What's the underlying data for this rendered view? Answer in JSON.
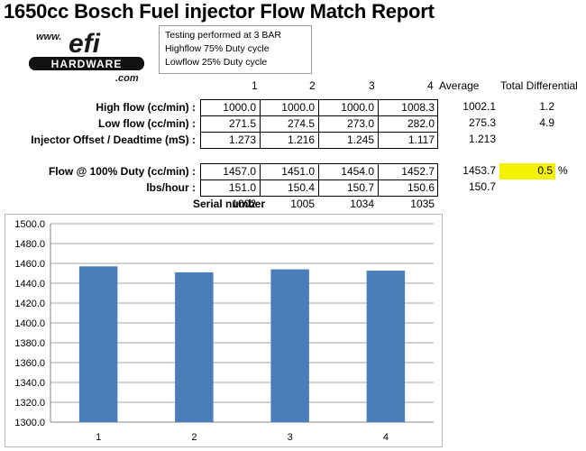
{
  "title": "1650cc Bosch Fuel injector Flow Match Report",
  "logo": {
    "www": "www.",
    "brand": "efi",
    "name": "HARDWARE",
    "dotcom": ".com"
  },
  "notes": [
    "Testing performed at 3 BAR",
    "Highflow 75% Duty cycle",
    "Lowflow 25% Duty cycle"
  ],
  "columns": [
    "1",
    "2",
    "3",
    "4"
  ],
  "average_header": "Average",
  "total_diff_header": "Total Differential",
  "rows1": [
    {
      "label": "High flow  (cc/min) :",
      "values": [
        "1000.0",
        "1000.0",
        "1000.0",
        "1008.3"
      ],
      "average": "1002.1",
      "diff": "1.2"
    },
    {
      "label": "Low flow (cc/min) :",
      "values": [
        "271.5",
        "274.5",
        "273.0",
        "282.0"
      ],
      "average": "275.3",
      "diff": "4.9"
    },
    {
      "label": "Injector Offset / Deadtime (mS) :",
      "values": [
        "1.273",
        "1.216",
        "1.245",
        "1.117"
      ],
      "average": "1.213",
      "diff": ""
    }
  ],
  "rows2": [
    {
      "label": "Flow @ 100% Duty (cc/min) :",
      "values": [
        "1457.0",
        "1451.0",
        "1454.0",
        "1452.7"
      ],
      "average": "1453.7",
      "diff": "0.5",
      "unit": "%"
    },
    {
      "label": "lbs/hour :",
      "values": [
        "151.0",
        "150.4",
        "150.7",
        "150.6"
      ],
      "average": "150.7",
      "diff": ""
    }
  ],
  "serial": {
    "label": "Serial number",
    "values": [
      "1002",
      "1005",
      "1034",
      "1035"
    ]
  },
  "colors": {
    "bar": "#4a7ebb",
    "highlight": "#f5f200"
  },
  "chart_data": {
    "type": "bar",
    "categories": [
      "1",
      "2",
      "3",
      "4"
    ],
    "values": [
      1457.0,
      1451.0,
      1454.0,
      1452.7
    ],
    "yticks": [
      "1300.0",
      "1320.0",
      "1340.0",
      "1360.0",
      "1380.0",
      "1400.0",
      "1420.0",
      "1440.0",
      "1460.0",
      "1480.0",
      "1500.0"
    ],
    "ylim": [
      1300,
      1500
    ],
    "grid": true,
    "title": "",
    "xlabel": "",
    "ylabel": ""
  }
}
